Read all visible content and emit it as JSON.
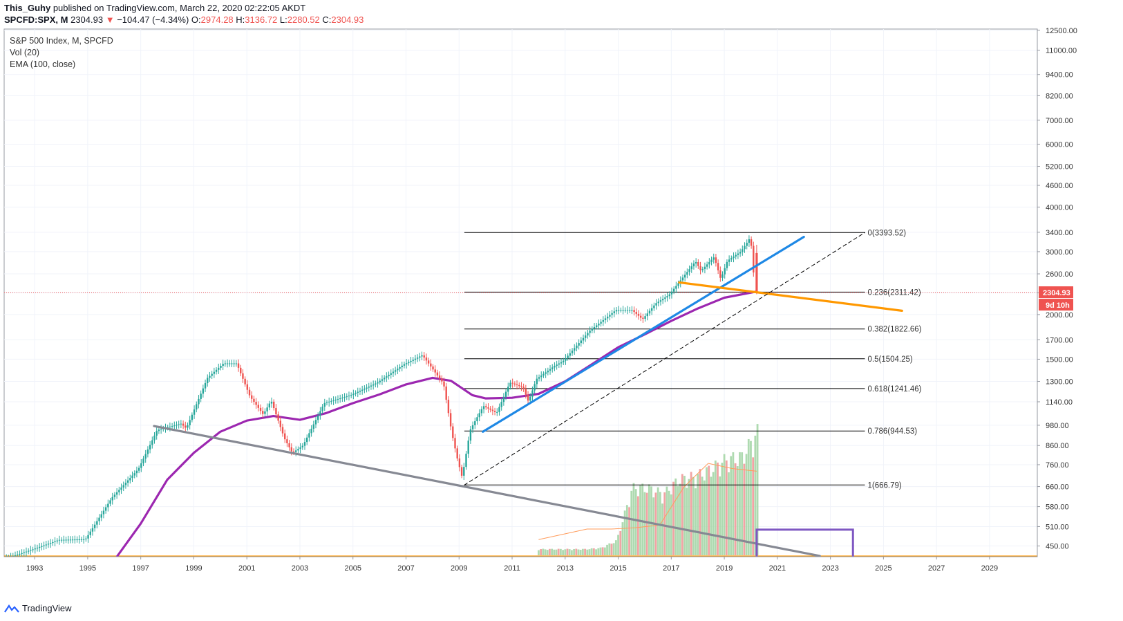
{
  "header": {
    "author": "This_Guhy",
    "published_text": "published on TradingView.com, March 22, 2020 02:22:05 AKDT",
    "symbol": "SPCFD:SPX, M",
    "last": "2304.93",
    "change": "−104.47 (−4.34%)",
    "o_label": "O:",
    "o_value": "2974.28",
    "h_label": "H:",
    "h_value": "3136.72",
    "l_label": "L:",
    "l_value": "2280.52",
    "c_label": "C:",
    "c_value": "2304.93"
  },
  "legend": {
    "main": "S&P 500 Index, M, SPCFD",
    "vol": "Vol (20)",
    "ema": "EMA (100, close)"
  },
  "footer": {
    "brand": "TradingView"
  },
  "colors": {
    "up": "#26a69a",
    "down": "#ef5350",
    "ema": "#9c27b0",
    "blue_trend": "#1e88e5",
    "orange_trend": "#ff9800",
    "gray_trend": "#868993",
    "box": "#7e57c2",
    "vol_up": "#a5d6a7",
    "vol_down": "#ef9a9a",
    "vol_ma": "#ff9b5a"
  },
  "chart_data": {
    "type": "candlestick",
    "y_scale": "log",
    "ylim": [
      420,
      12600
    ],
    "xlim": [
      1991.85,
      2030.8
    ],
    "x_ticks": [
      "1993",
      "1995",
      "1997",
      "1999",
      "2001",
      "2003",
      "2005",
      "2007",
      "2009",
      "2011",
      "2013",
      "2015",
      "2017",
      "2019",
      "2021",
      "2023",
      "2025",
      "2027",
      "2029"
    ],
    "y_ticks": [
      "450.00",
      "510.00",
      "580.00",
      "660.00",
      "760.00",
      "860.00",
      "980.00",
      "1140.00",
      "1300.00",
      "1500.00",
      "1700.00",
      "2000.00",
      "2300.00",
      "2600.00",
      "3000.00",
      "3400.00",
      "4000.00",
      "4600.00",
      "5200.00",
      "6000.00",
      "7000.00",
      "8200.00",
      "9400.00",
      "11000.00",
      "12500.00"
    ],
    "price_path": [
      [
        1992.0,
        415
      ],
      [
        1993.0,
        440
      ],
      [
        1994.0,
        468
      ],
      [
        1995.0,
        470
      ],
      [
        1996.0,
        615
      ],
      [
        1997.0,
        740
      ],
      [
        1997.7,
        950
      ],
      [
        1998.6,
        990
      ],
      [
        1998.8,
        960
      ],
      [
        1999.6,
        1330
      ],
      [
        2000.2,
        1460
      ],
      [
        2000.7,
        1460
      ],
      [
        2001.2,
        1180
      ],
      [
        2001.7,
        1050
      ],
      [
        2002.0,
        1150
      ],
      [
        2002.5,
        900
      ],
      [
        2002.8,
        820
      ],
      [
        2003.2,
        860
      ],
      [
        2004.0,
        1130
      ],
      [
        2005.0,
        1190
      ],
      [
        2006.0,
        1290
      ],
      [
        2007.0,
        1450
      ],
      [
        2007.7,
        1540
      ],
      [
        2008.5,
        1280
      ],
      [
        2008.8,
        940
      ],
      [
        2009.0,
        800
      ],
      [
        2009.2,
        700
      ],
      [
        2009.5,
        950
      ],
      [
        2010.0,
        1110
      ],
      [
        2010.5,
        1060
      ],
      [
        2011.0,
        1290
      ],
      [
        2011.5,
        1250
      ],
      [
        2011.7,
        1140
      ],
      [
        2012.0,
        1320
      ],
      [
        2012.7,
        1440
      ],
      [
        2013.0,
        1480
      ],
      [
        2014.0,
        1800
      ],
      [
        2015.0,
        2060
      ],
      [
        2015.6,
        2060
      ],
      [
        2016.0,
        1940
      ],
      [
        2016.5,
        2150
      ],
      [
        2017.0,
        2270
      ],
      [
        2018.0,
        2820
      ],
      [
        2018.2,
        2650
      ],
      [
        2018.7,
        2900
      ],
      [
        2018.95,
        2510
      ],
      [
        2019.2,
        2830
      ],
      [
        2019.7,
        3000
      ],
      [
        2020.0,
        3230
      ],
      [
        2020.05,
        3290
      ],
      [
        2020.15,
        2950
      ],
      [
        2020.22,
        2304.93
      ]
    ],
    "last_candle": {
      "x": 2020.22,
      "open": 2974.28,
      "high": 3136.72,
      "low": 2280.52,
      "close": 2304.93
    },
    "ema": [
      [
        1996.1,
        420
      ],
      [
        1997.0,
        520
      ],
      [
        1998.0,
        690
      ],
      [
        1999.0,
        820
      ],
      [
        2000.0,
        940
      ],
      [
        2001.0,
        1010
      ],
      [
        2002.0,
        1040
      ],
      [
        2003.0,
        1015
      ],
      [
        2004.0,
        1060
      ],
      [
        2005.0,
        1130
      ],
      [
        2006.0,
        1195
      ],
      [
        2007.0,
        1275
      ],
      [
        2008.0,
        1330
      ],
      [
        2008.7,
        1305
      ],
      [
        2009.5,
        1190
      ],
      [
        2010.0,
        1165
      ],
      [
        2011.0,
        1170
      ],
      [
        2012.0,
        1200
      ],
      [
        2013.0,
        1300
      ],
      [
        2014.0,
        1450
      ],
      [
        2015.0,
        1620
      ],
      [
        2016.0,
        1760
      ],
      [
        2017.0,
        1920
      ],
      [
        2018.0,
        2080
      ],
      [
        2019.0,
        2230
      ],
      [
        2020.22,
        2320
      ]
    ],
    "fib": {
      "x_start": 2009.2,
      "x_end": 2024.3,
      "levels": [
        {
          "label": "0(3393.52)",
          "value": 3393.52
        },
        {
          "label": "0.236(2311.42)",
          "value": 2311.42
        },
        {
          "label": "0.382(1822.66)",
          "value": 1822.66
        },
        {
          "label": "0.5(1504.25)",
          "value": 1504.25
        },
        {
          "label": "0.618(1241.46)",
          "value": 1241.46
        },
        {
          "label": "0.786(944.53)",
          "value": 944.53
        },
        {
          "label": "1(666.79)",
          "value": 666.79
        }
      ]
    },
    "trendlines": [
      {
        "name": "blue",
        "from": [
          2009.9,
          940
        ],
        "to": [
          2022.0,
          3300
        ]
      },
      {
        "name": "orange",
        "from": [
          2017.3,
          2460
        ],
        "to": [
          2025.7,
          2050
        ]
      },
      {
        "name": "gray",
        "from": [
          1997.5,
          975
        ],
        "to": [
          2022.6,
          422
        ]
      },
      {
        "name": "dashed",
        "from": [
          2009.2,
          666.79
        ],
        "to": [
          2024.3,
          3393.52
        ]
      }
    ],
    "box": {
      "x0": 2020.22,
      "x1": 2023.85,
      "y_top": 500,
      "y_bottom": 420
    },
    "volume": {
      "x_start": 2012.0,
      "x_end": 2020.22,
      "relative_heights": [
        0.05,
        0.05,
        0.05,
        0.05,
        0.06,
        0.12,
        0.55,
        0.55,
        0.5,
        0.62,
        0.64,
        0.7,
        0.78,
        0.8,
        1.0
      ],
      "ma_relative": [
        0.12,
        0.16,
        0.2,
        0.2,
        0.21,
        0.23,
        0.52,
        0.7,
        0.66,
        0.64
      ]
    },
    "price_label": {
      "value": "2304.93",
      "countdown": "9d 10h"
    }
  }
}
